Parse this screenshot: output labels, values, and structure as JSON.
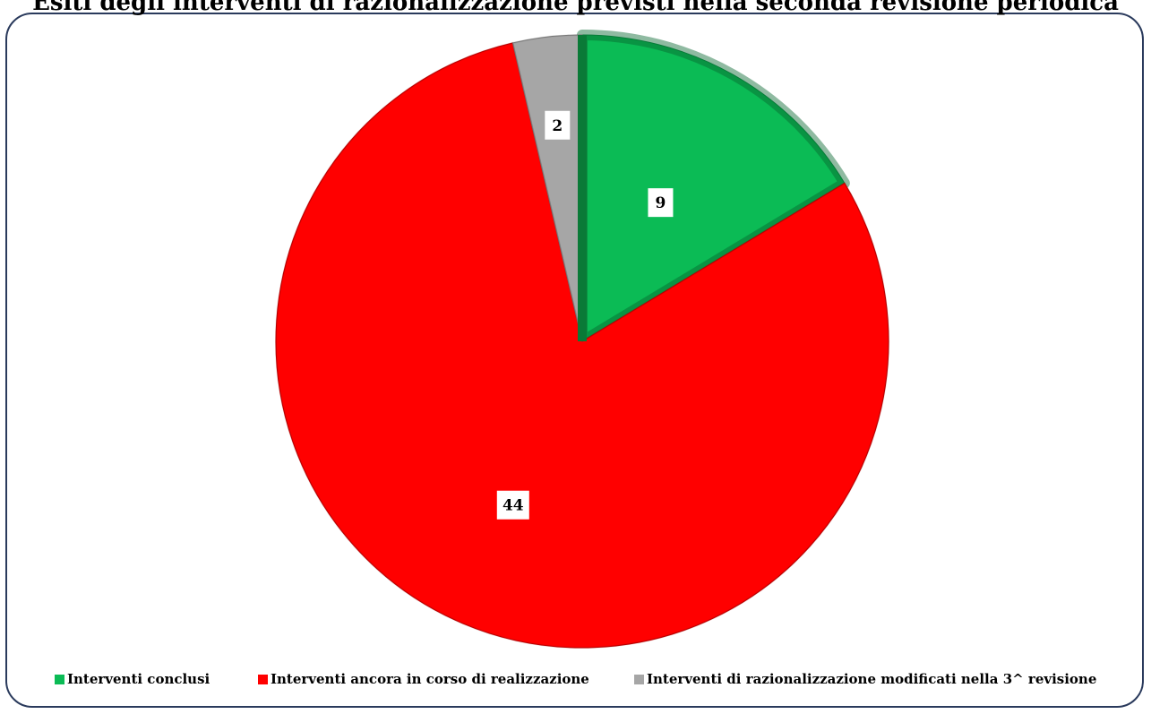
{
  "chart_data": {
    "type": "pie",
    "title": "Esiti degli interventi di razionalizzazione previsti nella seconda revisione periodica",
    "categories": [
      "Interventi conclusi",
      "Interventi ancora in corso di realizzazione",
      "Interventi di razionalizzazione modificati nella 3^ revisione"
    ],
    "values": [
      9,
      44,
      2
    ],
    "data_labels": [
      "9",
      "44",
      "2"
    ],
    "colors": [
      "#0bbb55",
      "#ff0000",
      "#a6a6a6"
    ],
    "legend_position": "bottom",
    "grid": false
  }
}
